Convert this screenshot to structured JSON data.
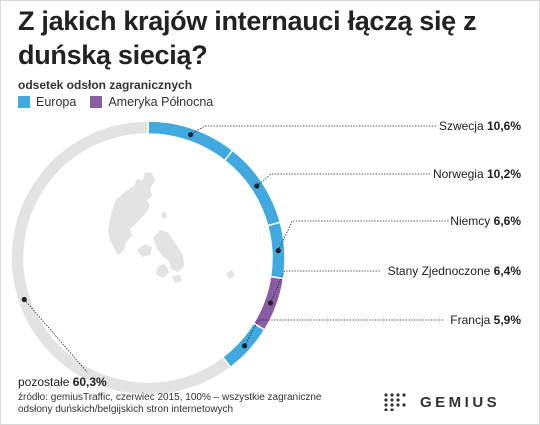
{
  "title": "Z jakich krajów internauci łączą się z duńską siecią?",
  "subtitle": "odsetek odsłon zagranicznych",
  "legend": [
    {
      "label": "Europa",
      "color": "#3fa9e0"
    },
    {
      "label": "Ameryka Północna",
      "color": "#8a5ca6"
    }
  ],
  "colors": {
    "remainder": "#e3e3e3",
    "leader": "#222222"
  },
  "chart_data": {
    "type": "pie",
    "variant": "donut",
    "unit": "%",
    "slices": [
      {
        "name": "Szwecja",
        "value": 10.6,
        "value_label": "10,6%",
        "group": "Europa"
      },
      {
        "name": "Norwegia",
        "value": 10.2,
        "value_label": "10,2%",
        "group": "Europa"
      },
      {
        "name": "Niemcy",
        "value": 6.6,
        "value_label": "6,6%",
        "group": "Europa"
      },
      {
        "name": "Stany Zjednoczone",
        "value": 6.4,
        "value_label": "6,4%",
        "group": "Ameryka Północna"
      },
      {
        "name": "Francja",
        "value": 5.9,
        "value_label": "5,9%",
        "group": "Europa"
      },
      {
        "name": "pozostałe",
        "value": 60.3,
        "value_label": "60,3%",
        "group": ""
      }
    ]
  },
  "map_icon": "denmark-map-icon",
  "source": "źródło: gemiusTraffic, czerwiec 2015, 100% – wszystkie zagraniczne odsłony duńskich/belgijskich stron internetowych",
  "brand": {
    "name": "GEMIUS",
    "logo_icon": "gemius-dots-icon"
  }
}
